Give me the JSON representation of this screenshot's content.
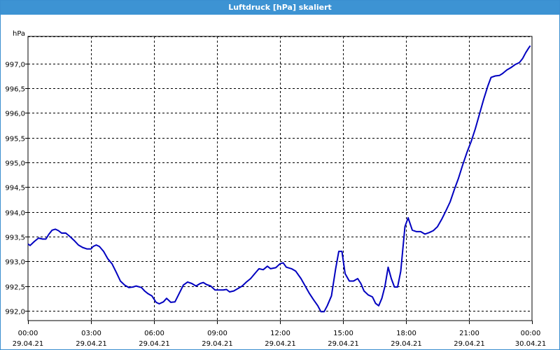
{
  "window": {
    "title": "Luftdruck [hPa] skaliert"
  },
  "chart_data": {
    "type": "line",
    "title": "Luftdruck [hPa] skaliert",
    "ylabel": "hPa",
    "xlabel": "",
    "ylim": [
      991.8,
      997.55
    ],
    "grid": true,
    "legend": "none",
    "line_color": "#0000c0",
    "y_ticks": [
      {
        "v": 992.0,
        "label": "992,0"
      },
      {
        "v": 992.5,
        "label": "992,5"
      },
      {
        "v": 993.0,
        "label": "993,0"
      },
      {
        "v": 993.5,
        "label": "993,5"
      },
      {
        "v": 994.0,
        "label": "994,0"
      },
      {
        "v": 994.5,
        "label": "994,5"
      },
      {
        "v": 995.0,
        "label": "995,0"
      },
      {
        "v": 995.5,
        "label": "995,5"
      },
      {
        "v": 996.0,
        "label": "996,0"
      },
      {
        "v": 996.5,
        "label": "996,5"
      },
      {
        "v": 997.0,
        "label": "997,0"
      }
    ],
    "x_ticks": [
      {
        "h": 0,
        "time": "00:00",
        "date": "29.04.21"
      },
      {
        "h": 3,
        "time": "03:00",
        "date": "29.04.21"
      },
      {
        "h": 6,
        "time": "06:00",
        "date": "29.04.21"
      },
      {
        "h": 9,
        "time": "09:00",
        "date": "29.04.21"
      },
      {
        "h": 12,
        "time": "12:00",
        "date": "29.04.21"
      },
      {
        "h": 15,
        "time": "15:00",
        "date": "29.04.21"
      },
      {
        "h": 18,
        "time": "18:00",
        "date": "29.04.21"
      },
      {
        "h": 21,
        "time": "21:00",
        "date": "29.04.21"
      },
      {
        "h": 24,
        "time": "00:00",
        "date": "30.04.21"
      }
    ],
    "series": [
      {
        "points": [
          [
            0.0,
            993.35
          ],
          [
            0.1,
            993.32
          ],
          [
            0.3,
            993.4
          ],
          [
            0.5,
            993.47
          ],
          [
            0.7,
            993.45
          ],
          [
            0.85,
            993.45
          ],
          [
            1.0,
            993.55
          ],
          [
            1.15,
            993.63
          ],
          [
            1.3,
            993.65
          ],
          [
            1.45,
            993.62
          ],
          [
            1.6,
            993.57
          ],
          [
            1.8,
            993.57
          ],
          [
            2.0,
            993.5
          ],
          [
            2.2,
            993.42
          ],
          [
            2.4,
            993.33
          ],
          [
            2.6,
            993.28
          ],
          [
            2.8,
            993.25
          ],
          [
            3.0,
            993.25
          ],
          [
            3.1,
            993.3
          ],
          [
            3.25,
            993.33
          ],
          [
            3.4,
            993.3
          ],
          [
            3.6,
            993.2
          ],
          [
            3.8,
            993.05
          ],
          [
            4.0,
            992.95
          ],
          [
            4.2,
            992.78
          ],
          [
            4.4,
            992.6
          ],
          [
            4.6,
            992.52
          ],
          [
            4.8,
            992.47
          ],
          [
            5.0,
            992.48
          ],
          [
            5.15,
            992.5
          ],
          [
            5.4,
            992.47
          ],
          [
            5.55,
            992.4
          ],
          [
            5.7,
            992.35
          ],
          [
            5.9,
            992.3
          ],
          [
            6.1,
            992.17
          ],
          [
            6.25,
            992.14
          ],
          [
            6.45,
            992.18
          ],
          [
            6.6,
            992.25
          ],
          [
            6.8,
            992.17
          ],
          [
            7.0,
            992.18
          ],
          [
            7.2,
            992.35
          ],
          [
            7.4,
            992.52
          ],
          [
            7.6,
            992.58
          ],
          [
            7.8,
            992.55
          ],
          [
            8.0,
            992.5
          ],
          [
            8.2,
            992.55
          ],
          [
            8.35,
            992.57
          ],
          [
            8.5,
            992.53
          ],
          [
            8.7,
            992.5
          ],
          [
            8.9,
            992.42
          ],
          [
            9.1,
            992.42
          ],
          [
            9.3,
            992.42
          ],
          [
            9.45,
            992.43
          ],
          [
            9.6,
            992.38
          ],
          [
            9.8,
            992.4
          ],
          [
            10.0,
            992.45
          ],
          [
            10.2,
            992.5
          ],
          [
            10.4,
            992.58
          ],
          [
            10.6,
            992.65
          ],
          [
            10.8,
            992.75
          ],
          [
            11.0,
            992.85
          ],
          [
            11.2,
            992.83
          ],
          [
            11.4,
            992.9
          ],
          [
            11.55,
            992.85
          ],
          [
            11.8,
            992.87
          ],
          [
            12.0,
            992.95
          ],
          [
            12.15,
            992.97
          ],
          [
            12.3,
            992.88
          ],
          [
            12.55,
            992.85
          ],
          [
            12.75,
            992.8
          ],
          [
            13.0,
            992.65
          ],
          [
            13.2,
            992.5
          ],
          [
            13.4,
            992.35
          ],
          [
            13.6,
            992.22
          ],
          [
            13.8,
            992.1
          ],
          [
            13.95,
            991.98
          ],
          [
            14.1,
            991.98
          ],
          [
            14.25,
            992.1
          ],
          [
            14.45,
            992.3
          ],
          [
            14.65,
            992.85
          ],
          [
            14.8,
            993.2
          ],
          [
            14.95,
            993.2
          ],
          [
            15.1,
            992.75
          ],
          [
            15.3,
            992.6
          ],
          [
            15.5,
            992.6
          ],
          [
            15.7,
            992.65
          ],
          [
            15.85,
            992.55
          ],
          [
            16.0,
            992.4
          ],
          [
            16.2,
            992.32
          ],
          [
            16.4,
            992.28
          ],
          [
            16.55,
            992.15
          ],
          [
            16.7,
            992.1
          ],
          [
            16.85,
            992.25
          ],
          [
            17.0,
            992.5
          ],
          [
            17.15,
            992.88
          ],
          [
            17.3,
            992.65
          ],
          [
            17.45,
            992.48
          ],
          [
            17.6,
            992.48
          ],
          [
            17.75,
            992.8
          ],
          [
            17.95,
            993.7
          ],
          [
            18.1,
            993.88
          ],
          [
            18.3,
            993.63
          ],
          [
            18.5,
            993.6
          ],
          [
            18.7,
            993.6
          ],
          [
            18.9,
            993.55
          ],
          [
            19.1,
            993.58
          ],
          [
            19.3,
            993.62
          ],
          [
            19.5,
            993.7
          ],
          [
            19.7,
            993.85
          ],
          [
            19.9,
            994.02
          ],
          [
            20.1,
            994.2
          ],
          [
            20.3,
            994.45
          ],
          [
            20.5,
            994.68
          ],
          [
            20.7,
            994.95
          ],
          [
            20.9,
            995.2
          ],
          [
            21.1,
            995.42
          ],
          [
            21.3,
            995.68
          ],
          [
            21.5,
            995.98
          ],
          [
            21.7,
            996.28
          ],
          [
            21.9,
            996.55
          ],
          [
            22.05,
            996.72
          ],
          [
            22.25,
            996.75
          ],
          [
            22.45,
            996.76
          ],
          [
            22.6,
            996.8
          ],
          [
            22.8,
            996.87
          ],
          [
            23.0,
            996.92
          ],
          [
            23.2,
            996.98
          ],
          [
            23.4,
            997.02
          ],
          [
            23.55,
            997.1
          ],
          [
            23.7,
            997.22
          ],
          [
            23.85,
            997.32
          ],
          [
            23.92,
            997.36
          ]
        ]
      }
    ]
  }
}
